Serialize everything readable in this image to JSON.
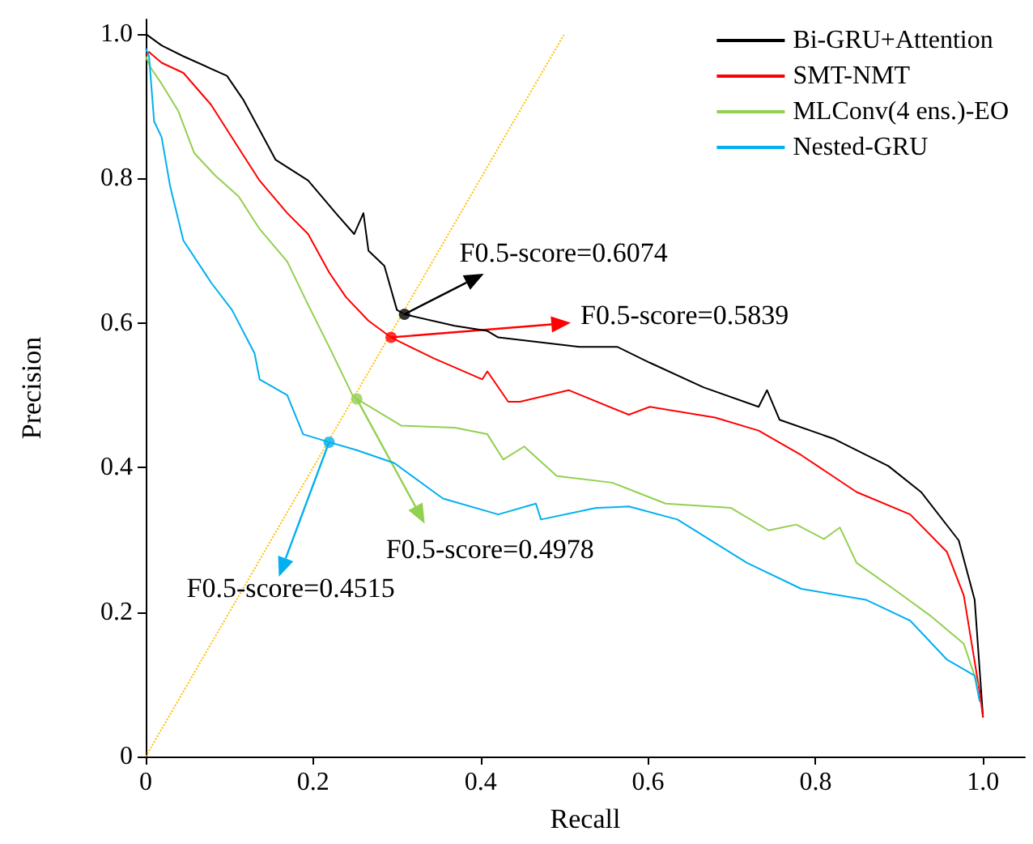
{
  "chart_data": {
    "type": "line",
    "xlabel": "Recall",
    "ylabel": "Precision",
    "xlim": [
      0,
      1.05
    ],
    "ylim": [
      0,
      1.02
    ],
    "xticks": [
      0,
      0.2,
      0.4,
      0.6,
      0.8,
      {
        "value": 1,
        "label": "1.0"
      }
    ],
    "yticks": [
      0,
      0.2,
      0.4,
      0.6,
      0.8,
      {
        "value": 1,
        "label": "1.0"
      }
    ],
    "grid": false,
    "legend": "top right",
    "marker": "none",
    "line_style": "solid",
    "series": [
      {
        "name": "Bi-GRU+Attention",
        "color": "#000000",
        "x": [
          0,
          0.019,
          0.045,
          0.097,
          0.117,
          0.155,
          0.194,
          0.227,
          0.249,
          0.26,
          0.266,
          0.285,
          0.3,
          0.309,
          0.369,
          0.408,
          0.421,
          0.518,
          0.563,
          0.602,
          0.666,
          0.732,
          0.742,
          0.757,
          0.821,
          0.887,
          0.926,
          0.971,
          0.99,
          1.0
        ],
        "values": [
          1.0,
          0.984,
          0.969,
          0.942,
          0.908,
          0.826,
          0.797,
          0.752,
          0.723,
          0.752,
          0.7,
          0.679,
          0.618,
          0.612,
          0.596,
          0.589,
          0.58,
          0.567,
          0.567,
          0.545,
          0.511,
          0.484,
          0.507,
          0.466,
          0.44,
          0.402,
          0.366,
          0.299,
          0.217,
          0.054
        ]
      },
      {
        "name": "SMT-NMT",
        "color": "#ff0000",
        "x": [
          0,
          0.004,
          0.019,
          0.045,
          0.078,
          0.111,
          0.136,
          0.169,
          0.194,
          0.219,
          0.239,
          0.266,
          0.293,
          0.344,
          0.402,
          0.408,
          0.433,
          0.447,
          0.505,
          0.577,
          0.602,
          0.68,
          0.732,
          0.783,
          0.849,
          0.913,
          0.957,
          0.977,
          0.996,
          1.0
        ],
        "values": [
          0.97,
          0.975,
          0.96,
          0.946,
          0.902,
          0.842,
          0.797,
          0.752,
          0.723,
          0.67,
          0.636,
          0.603,
          0.58,
          0.551,
          0.522,
          0.533,
          0.491,
          0.491,
          0.507,
          0.473,
          0.484,
          0.469,
          0.451,
          0.417,
          0.366,
          0.335,
          0.283,
          0.223,
          0.089,
          0.054
        ]
      },
      {
        "name": "MLConv(4 ens.)-EO",
        "color": "#92d050",
        "x": [
          0,
          0.006,
          0.019,
          0.039,
          0.058,
          0.083,
          0.111,
          0.136,
          0.169,
          0.194,
          0.219,
          0.247,
          0.252,
          0.305,
          0.369,
          0.408,
          0.427,
          0.452,
          0.491,
          0.557,
          0.621,
          0.699,
          0.744,
          0.777,
          0.81,
          0.829,
          0.849,
          0.893,
          0.938,
          0.977,
          0.994
        ],
        "values": [
          0.969,
          0.953,
          0.931,
          0.893,
          0.835,
          0.804,
          0.775,
          0.73,
          0.685,
          0.625,
          0.567,
          0.5,
          0.495,
          0.458,
          0.455,
          0.446,
          0.411,
          0.429,
          0.388,
          0.379,
          0.35,
          0.344,
          0.313,
          0.321,
          0.301,
          0.317,
          0.268,
          0.232,
          0.194,
          0.156,
          0.098
        ]
      },
      {
        "name": "Nested-GRU",
        "color": "#00b0f0",
        "x": [
          0,
          0.004,
          0.01,
          0.019,
          0.029,
          0.045,
          0.078,
          0.103,
          0.13,
          0.136,
          0.169,
          0.188,
          0.219,
          0.252,
          0.297,
          0.355,
          0.421,
          0.466,
          0.472,
          0.538,
          0.577,
          0.635,
          0.718,
          0.783,
          0.86,
          0.913,
          0.957,
          0.99,
          0.996
        ],
        "values": [
          0.98,
          0.969,
          0.879,
          0.857,
          0.79,
          0.714,
          0.656,
          0.618,
          0.558,
          0.522,
          0.5,
          0.446,
          0.435,
          0.424,
          0.406,
          0.357,
          0.335,
          0.35,
          0.328,
          0.344,
          0.346,
          0.328,
          0.268,
          0.232,
          0.217,
          0.188,
          0.134,
          0.112,
          0.076
        ]
      },
      {
        "type": "line",
        "color": "#ffc000",
        "line_style": "dotted",
        "x": [
          0,
          0.5
        ],
        "values": [
          0,
          1
        ]
      },
      {
        "type": "scatter",
        "marker": "circle",
        "colors": [
          "#000000",
          "#ff0000",
          "#92d050",
          "#00b0f0"
        ],
        "x": [
          0.309,
          0.293,
          0.252,
          0.219
        ],
        "values": [
          0.612,
          0.58,
          0.495,
          0.435
        ]
      }
    ],
    "annotations": [
      {
        "text": "F0.5-score=0.6074",
        "x": 0.309,
        "y": 0.612
      },
      {
        "text": "F0.5-score=0.5839",
        "x": 0.293,
        "y": 0.58
      },
      {
        "text": "F0.5-score=0.4978",
        "x": 0.252,
        "y": 0.495
      },
      {
        "text": "F0.5-score=0.4515",
        "x": 0.219,
        "y": 0.435
      }
    ]
  }
}
